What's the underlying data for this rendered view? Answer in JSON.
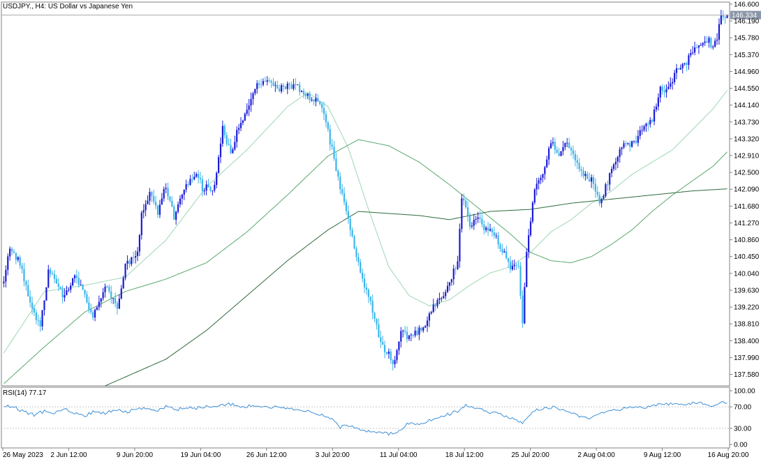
{
  "header": {
    "symbol_label": "USDJPY., H4:  US Dollar vs Japanese Yen"
  },
  "colors": {
    "background": "#ffffff",
    "frame": "#808080",
    "bull_candle": "#1b1bd6",
    "bear_candle": "#3bb4ea",
    "ma_fast": "#9ed6b3",
    "ma_mid": "#5aa86e",
    "ma_slow": "#2e6b3c",
    "rsi_line": "#3c8fd6",
    "price_tag_bg": "#8a95a8",
    "price_tag_text": "#ffffff",
    "level_line": "#a8a8a8",
    "grid_dotted": "#c8c8c8"
  },
  "chart_data": [
    {
      "type": "candlestick",
      "symbol": "USDJPY.",
      "timeframe": "H4",
      "title": "USDJPY., H4:  US Dollar vs Japanese Yen",
      "ylim": [
        137.3,
        146.65
      ],
      "y_ticks": [
        "146.600",
        "146.190",
        "145.780",
        "145.370",
        "144.960",
        "144.550",
        "144.140",
        "143.730",
        "143.320",
        "142.910",
        "142.500",
        "142.090",
        "141.680",
        "141.270",
        "140.860",
        "140.450",
        "140.040",
        "139.630",
        "139.220",
        "138.810",
        "138.400",
        "137.990",
        "137.580"
      ],
      "x_ticks": [
        "26 May 2023",
        "2 Jun 12:00",
        "9 Jun 20:00",
        "19 Jun 04:00",
        "26 Jun 12:00",
        "3 Jul 20:00",
        "11 Jul 04:00",
        "18 Jul 12:00",
        "25 Jul 20:00",
        "2 Aug 04:00",
        "9 Aug 12:00",
        "16 Aug 20:00"
      ],
      "current_price": "146.334",
      "current_price_value": 146.334,
      "price_keypoints": [
        [
          0,
          139.8
        ],
        [
          3,
          140.7
        ],
        [
          8,
          140.3
        ],
        [
          14,
          139.2
        ],
        [
          18,
          138.75
        ],
        [
          22,
          140.1
        ],
        [
          30,
          139.45
        ],
        [
          35,
          140.05
        ],
        [
          40,
          139.45
        ],
        [
          44,
          139.05
        ],
        [
          50,
          139.7
        ],
        [
          56,
          139.25
        ],
        [
          60,
          140.2
        ],
        [
          66,
          140.6
        ],
        [
          68,
          141.45
        ],
        [
          72,
          142.0
        ],
        [
          76,
          141.55
        ],
        [
          80,
          142.2
        ],
        [
          84,
          141.4
        ],
        [
          90,
          142.25
        ],
        [
          96,
          142.45
        ],
        [
          98,
          142.1
        ],
        [
          104,
          142.15
        ],
        [
          108,
          143.65
        ],
        [
          112,
          142.9
        ],
        [
          116,
          143.65
        ],
        [
          120,
          143.95
        ],
        [
          124,
          144.55
        ],
        [
          130,
          144.8
        ],
        [
          135,
          144.55
        ],
        [
          140,
          144.6
        ],
        [
          144,
          144.6
        ],
        [
          150,
          144.35
        ],
        [
          154,
          144.3
        ],
        [
          158,
          143.9
        ],
        [
          162,
          143.05
        ],
        [
          166,
          142.15
        ],
        [
          170,
          141.4
        ],
        [
          174,
          140.4
        ],
        [
          178,
          139.75
        ],
        [
          182,
          139.15
        ],
        [
          186,
          138.3
        ],
        [
          190,
          138.05
        ],
        [
          193,
          137.85
        ],
        [
          196,
          138.7
        ],
        [
          200,
          138.45
        ],
        [
          204,
          138.6
        ],
        [
          208,
          138.8
        ],
        [
          212,
          139.2
        ],
        [
          216,
          139.45
        ],
        [
          220,
          139.85
        ],
        [
          224,
          140.3
        ],
        [
          226,
          141.95
        ],
        [
          230,
          141.2
        ],
        [
          234,
          141.4
        ],
        [
          238,
          141.1
        ],
        [
          242,
          141.0
        ],
        [
          246,
          140.6
        ],
        [
          250,
          140.2
        ],
        [
          254,
          140.2
        ],
        [
          256,
          138.85
        ],
        [
          258,
          140.6
        ],
        [
          262,
          142.1
        ],
        [
          266,
          142.45
        ],
        [
          270,
          143.25
        ],
        [
          274,
          142.9
        ],
        [
          278,
          143.3
        ],
        [
          282,
          142.75
        ],
        [
          286,
          142.5
        ],
        [
          290,
          142.3
        ],
        [
          294,
          141.75
        ],
        [
          296,
          142.0
        ],
        [
          300,
          142.55
        ],
        [
          304,
          143.1
        ],
        [
          308,
          143.15
        ],
        [
          312,
          143.3
        ],
        [
          316,
          143.6
        ],
        [
          320,
          143.75
        ],
        [
          324,
          144.55
        ],
        [
          328,
          144.5
        ],
        [
          332,
          144.95
        ],
        [
          336,
          145.1
        ],
        [
          340,
          145.5
        ],
        [
          344,
          145.6
        ],
        [
          348,
          145.7
        ],
        [
          350,
          145.55
        ],
        [
          352,
          145.8
        ],
        [
          354,
          146.25
        ],
        [
          357,
          146.33
        ]
      ],
      "moving_averages": [
        {
          "keypoints": [
            [
              0,
              138.1
            ],
            [
              20,
              139.6
            ],
            [
              40,
              139.75
            ],
            [
              60,
              139.95
            ],
            [
              80,
              140.85
            ],
            [
              100,
              142.15
            ],
            [
              120,
              143.05
            ],
            [
              140,
              144.1
            ],
            [
              150,
              144.45
            ],
            [
              160,
              144.1
            ],
            [
              170,
              143.1
            ],
            [
              180,
              141.6
            ],
            [
              190,
              140.2
            ],
            [
              200,
              139.5
            ],
            [
              210,
              139.25
            ],
            [
              220,
              139.4
            ],
            [
              230,
              139.75
            ],
            [
              240,
              140.05
            ],
            [
              250,
              140.2
            ],
            [
              260,
              140.55
            ],
            [
              270,
              141.05
            ],
            [
              280,
              141.35
            ],
            [
              290,
              141.75
            ],
            [
              300,
              142.05
            ],
            [
              310,
              142.45
            ],
            [
              320,
              142.75
            ],
            [
              330,
              143.05
            ],
            [
              340,
              143.55
            ],
            [
              350,
              144.05
            ],
            [
              357,
              144.5
            ]
          ]
        },
        {
          "keypoints": [
            [
              0,
              137.35
            ],
            [
              20,
              138.25
            ],
            [
              40,
              139.1
            ],
            [
              60,
              139.6
            ],
            [
              80,
              139.9
            ],
            [
              100,
              140.3
            ],
            [
              120,
              141.05
            ],
            [
              140,
              141.95
            ],
            [
              160,
              142.9
            ],
            [
              175,
              143.3
            ],
            [
              190,
              143.15
            ],
            [
              205,
              142.75
            ],
            [
              220,
              142.2
            ],
            [
              235,
              141.6
            ],
            [
              250,
              141.0
            ],
            [
              260,
              140.55
            ],
            [
              270,
              140.35
            ],
            [
              280,
              140.3
            ],
            [
              290,
              140.45
            ],
            [
              300,
              140.75
            ],
            [
              310,
              141.1
            ],
            [
              320,
              141.55
            ],
            [
              330,
              141.95
            ],
            [
              340,
              142.3
            ],
            [
              350,
              142.65
            ],
            [
              357,
              143.0
            ]
          ]
        },
        {
          "keypoints": [
            [
              50,
              137.3
            ],
            [
              80,
              137.95
            ],
            [
              100,
              138.65
            ],
            [
              120,
              139.5
            ],
            [
              140,
              140.35
            ],
            [
              160,
              141.1
            ],
            [
              175,
              141.55
            ],
            [
              190,
              141.5
            ],
            [
              205,
              141.45
            ],
            [
              220,
              141.35
            ],
            [
              240,
              141.55
            ],
            [
              260,
              141.6
            ],
            [
              280,
              141.75
            ],
            [
              300,
              141.85
            ],
            [
              320,
              141.95
            ],
            [
              340,
              142.05
            ],
            [
              357,
              142.1
            ]
          ]
        }
      ]
    },
    {
      "type": "line",
      "title": "RSI(14) 77.17",
      "indicator": "RSI",
      "period": 14,
      "last_value": "77.17",
      "ylim": [
        0,
        100
      ],
      "y_ticks": [
        "100.00",
        "70.00",
        "30.00",
        "0.00"
      ],
      "levels": [
        70,
        30
      ],
      "keypoints": [
        [
          0,
          72
        ],
        [
          5,
          70
        ],
        [
          10,
          60
        ],
        [
          15,
          55
        ],
        [
          20,
          62
        ],
        [
          25,
          58
        ],
        [
          30,
          68
        ],
        [
          35,
          58
        ],
        [
          40,
          54
        ],
        [
          45,
          62
        ],
        [
          50,
          58
        ],
        [
          55,
          66
        ],
        [
          60,
          60
        ],
        [
          65,
          66
        ],
        [
          70,
          68
        ],
        [
          75,
          63
        ],
        [
          80,
          70
        ],
        [
          85,
          64
        ],
        [
          90,
          70
        ],
        [
          95,
          67
        ],
        [
          100,
          72
        ],
        [
          105,
          70
        ],
        [
          110,
          76
        ],
        [
          115,
          72
        ],
        [
          120,
          71
        ],
        [
          125,
          72
        ],
        [
          130,
          68
        ],
        [
          135,
          70
        ],
        [
          140,
          67
        ],
        [
          145,
          65
        ],
        [
          150,
          62
        ],
        [
          155,
          58
        ],
        [
          160,
          52
        ],
        [
          163,
          45
        ],
        [
          166,
          32
        ],
        [
          170,
          36
        ],
        [
          175,
          28
        ],
        [
          180,
          25
        ],
        [
          185,
          22
        ],
        [
          190,
          20
        ],
        [
          195,
          25
        ],
        [
          200,
          40
        ],
        [
          205,
          38
        ],
        [
          210,
          45
        ],
        [
          215,
          50
        ],
        [
          220,
          57
        ],
        [
          225,
          64
        ],
        [
          228,
          74
        ],
        [
          232,
          68
        ],
        [
          236,
          64
        ],
        [
          240,
          60
        ],
        [
          244,
          58
        ],
        [
          248,
          52
        ],
        [
          252,
          48
        ],
        [
          256,
          38
        ],
        [
          259,
          55
        ],
        [
          263,
          64
        ],
        [
          267,
          67
        ],
        [
          271,
          70
        ],
        [
          275,
          64
        ],
        [
          280,
          60
        ],
        [
          285,
          52
        ],
        [
          290,
          50
        ],
        [
          295,
          58
        ],
        [
          300,
          64
        ],
        [
          305,
          66
        ],
        [
          310,
          68
        ],
        [
          315,
          68
        ],
        [
          320,
          72
        ],
        [
          325,
          74
        ],
        [
          330,
          76
        ],
        [
          335,
          75
        ],
        [
          340,
          77
        ],
        [
          345,
          76
        ],
        [
          350,
          72
        ],
        [
          354,
          80
        ],
        [
          357,
          77.17
        ]
      ]
    }
  ]
}
